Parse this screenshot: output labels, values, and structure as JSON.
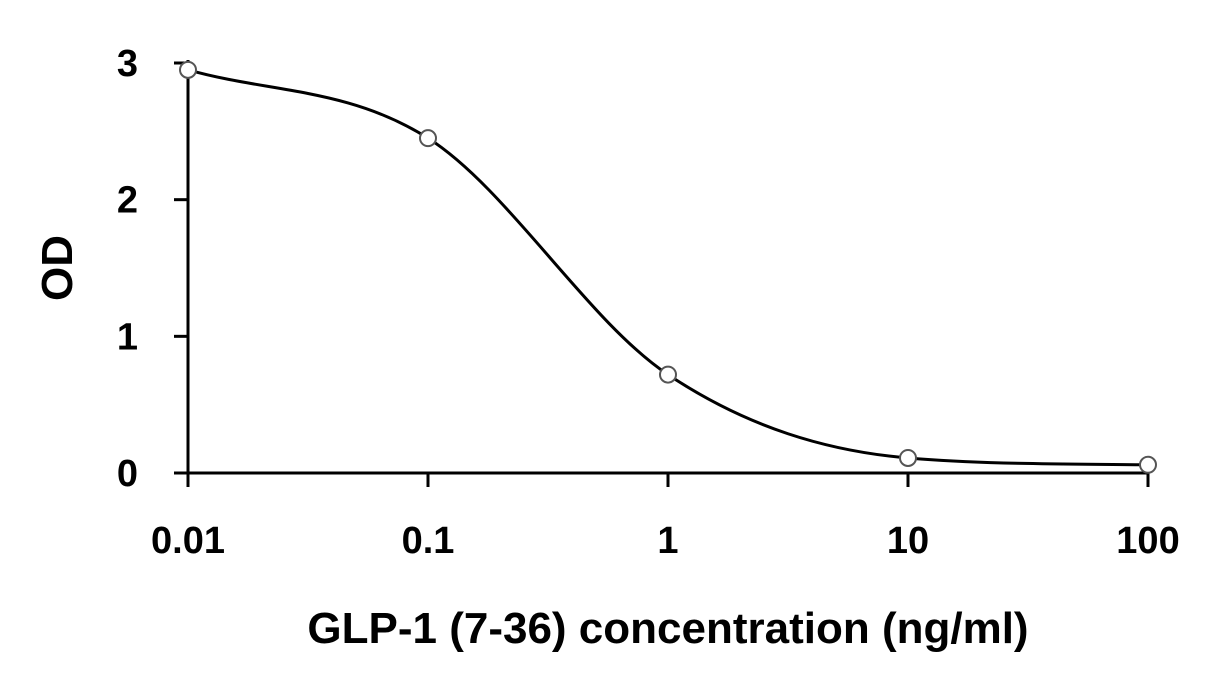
{
  "chart_data": {
    "type": "line",
    "title": "",
    "xlabel": "GLP-1 (7-36) concentration (ng/ml)",
    "ylabel": "OD",
    "x_scale": "log",
    "xlim": [
      0.01,
      100
    ],
    "ylim": [
      0,
      3
    ],
    "x_ticks": [
      0.01,
      0.1,
      1,
      10,
      100
    ],
    "x_tick_labels": [
      "0.01",
      "0.1",
      "1",
      "10",
      "100"
    ],
    "y_ticks": [
      0,
      1,
      2,
      3
    ],
    "y_tick_labels": [
      "0",
      "1",
      "2",
      "3"
    ],
    "grid": false,
    "legend": "none",
    "series": [
      {
        "marker": "open-circle",
        "line": "smooth-fit",
        "color": "#000000",
        "x": [
          0.01,
          0.1,
          1,
          10,
          100
        ],
        "y": [
          2.95,
          2.45,
          0.72,
          0.11,
          0.06
        ]
      }
    ]
  }
}
